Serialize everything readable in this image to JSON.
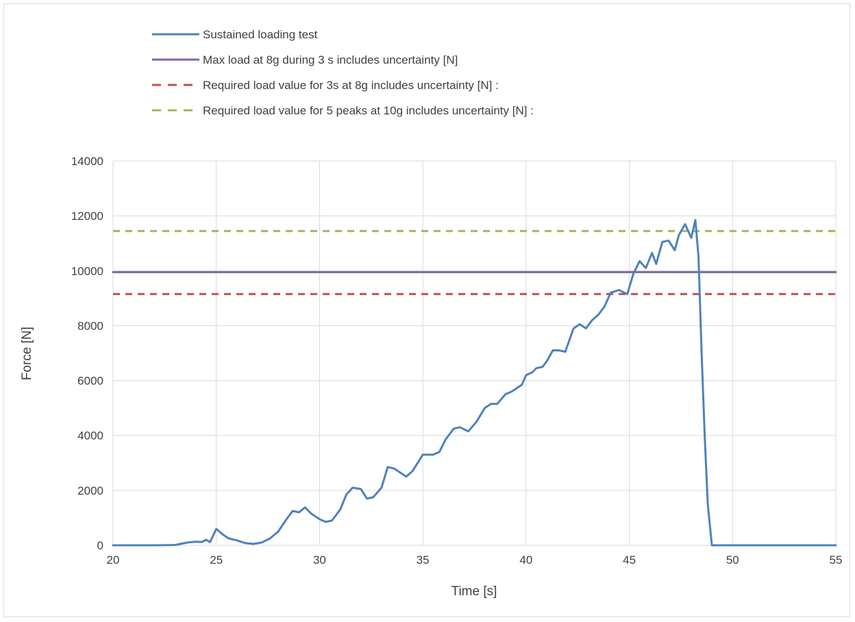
{
  "chart_data": {
    "type": "line",
    "title": "",
    "xlabel": "Time [s]",
    "ylabel": "Force [N]",
    "xlim": [
      20,
      55
    ],
    "ylim": [
      0,
      14000
    ],
    "x_ticks": [
      20,
      25,
      30,
      35,
      40,
      45,
      50,
      55
    ],
    "y_ticks": [
      0,
      2000,
      4000,
      6000,
      8000,
      10000,
      12000,
      14000
    ],
    "grid": true,
    "legend_position": "top",
    "series": [
      {
        "name": "Sustained loading test",
        "color": "#4f81bd",
        "style": "solid",
        "x": [
          20,
          21,
          22,
          23,
          23.6,
          24,
          24.3,
          24.5,
          24.7,
          25,
          25.3,
          25.6,
          26,
          26.4,
          26.8,
          27.2,
          27.6,
          28,
          28.4,
          28.7,
          29,
          29.3,
          29.6,
          30,
          30.3,
          30.6,
          31,
          31.3,
          31.6,
          32,
          32.3,
          32.6,
          33,
          33.3,
          33.6,
          33.9,
          34.2,
          34.5,
          35,
          35.5,
          35.8,
          36.1,
          36.5,
          36.8,
          37.2,
          37.6,
          38,
          38.3,
          38.6,
          39,
          39.3,
          39.5,
          39.8,
          40,
          40.3,
          40.5,
          40.8,
          41,
          41.3,
          41.6,
          41.9,
          42.3,
          42.6,
          42.9,
          43.2,
          43.5,
          43.8,
          44.1,
          44.5,
          44.9,
          45.2,
          45.5,
          45.8,
          46.1,
          46.3,
          46.6,
          46.9,
          47.2,
          47.4,
          47.7,
          48,
          48.2,
          48.35,
          48.5,
          48.65,
          48.8,
          49,
          49.2,
          50,
          51,
          52,
          53,
          54,
          55
        ],
        "values": [
          0,
          0,
          0,
          10,
          100,
          130,
          120,
          200,
          120,
          600,
          400,
          250,
          180,
          80,
          50,
          100,
          250,
          500,
          950,
          1250,
          1200,
          1380,
          1150,
          950,
          850,
          900,
          1300,
          1850,
          2100,
          2050,
          1700,
          1750,
          2100,
          2850,
          2800,
          2650,
          2500,
          2700,
          3300,
          3300,
          3400,
          3850,
          4250,
          4300,
          4150,
          4500,
          5000,
          5150,
          5150,
          5500,
          5600,
          5700,
          5850,
          6200,
          6300,
          6450,
          6500,
          6700,
          7100,
          7100,
          7050,
          7900,
          8050,
          7900,
          8200,
          8400,
          8700,
          9200,
          9300,
          9150,
          9900,
          10350,
          10100,
          10650,
          10250,
          11050,
          11100,
          10750,
          11300,
          11700,
          11200,
          11850,
          10500,
          7000,
          4000,
          1500,
          0,
          0,
          0,
          0,
          0,
          0,
          0,
          0
        ]
      },
      {
        "name": "Max load at 8g during 3 s includes uncertainty [N]",
        "color": "#8064a2",
        "style": "solid",
        "x": [
          20,
          55
        ],
        "values": [
          9950,
          9950
        ]
      },
      {
        "name": "Required load value for 3s at 8g includes uncertainty [N] :",
        "color": "#c0504d",
        "style": "dashed",
        "x": [
          20,
          55
        ],
        "values": [
          9150,
          9150
        ]
      },
      {
        "name": "Required load value for 5 peaks at 10g includes uncertainty [N] :",
        "color": "#9bbb59",
        "style": "dashed",
        "x": [
          20,
          55
        ],
        "values": [
          11450,
          11450
        ]
      }
    ]
  }
}
